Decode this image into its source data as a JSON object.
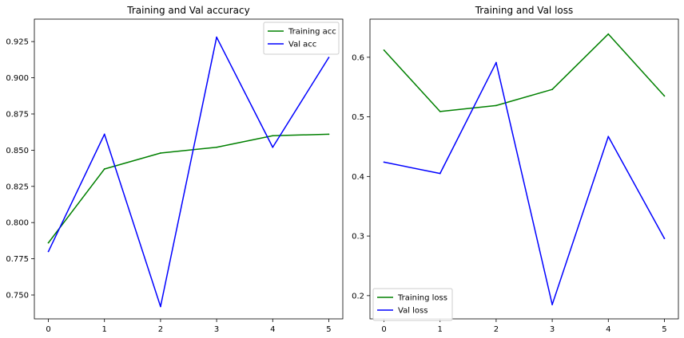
{
  "chart_data": [
    {
      "type": "line",
      "title": "Training and Val accuracy",
      "xlabel": "",
      "ylabel": "",
      "x": [
        0,
        1,
        2,
        3,
        4,
        5
      ],
      "xlim": [
        -0.25,
        5.25
      ],
      "ylim": [
        0.7335,
        0.9405
      ],
      "xticks": [
        0,
        1,
        2,
        3,
        4,
        5
      ],
      "yticks": [
        0.75,
        0.775,
        0.8,
        0.825,
        0.85,
        0.875,
        0.9,
        0.925
      ],
      "ytick_labels": [
        "0.750",
        "0.775",
        "0.800",
        "0.825",
        "0.850",
        "0.875",
        "0.900",
        "0.925"
      ],
      "grid": false,
      "legend_position": "top-right",
      "series": [
        {
          "name": "Training acc",
          "color": "#008000",
          "values": [
            0.786,
            0.837,
            0.848,
            0.852,
            0.86,
            0.861
          ]
        },
        {
          "name": "Val acc",
          "color": "#0000ff",
          "values": [
            0.78,
            0.861,
            0.742,
            0.928,
            0.852,
            0.914
          ]
        }
      ]
    },
    {
      "type": "line",
      "title": "Training and Val loss",
      "xlabel": "",
      "ylabel": "",
      "x": [
        0,
        1,
        2,
        3,
        4,
        5
      ],
      "xlim": [
        -0.25,
        5.25
      ],
      "ylim": [
        0.161,
        0.664
      ],
      "xticks": [
        0,
        1,
        2,
        3,
        4,
        5
      ],
      "yticks": [
        0.2,
        0.3,
        0.4,
        0.5,
        0.6
      ],
      "ytick_labels": [
        "0.2",
        "0.3",
        "0.4",
        "0.5",
        "0.6"
      ],
      "grid": false,
      "legend_position": "bottom-left",
      "series": [
        {
          "name": "Training loss",
          "color": "#008000",
          "values": [
            0.612,
            0.509,
            0.519,
            0.546,
            0.639,
            0.535
          ]
        },
        {
          "name": "Val loss",
          "color": "#0000ff",
          "values": [
            0.424,
            0.405,
            0.591,
            0.185,
            0.467,
            0.296
          ]
        }
      ]
    }
  ]
}
